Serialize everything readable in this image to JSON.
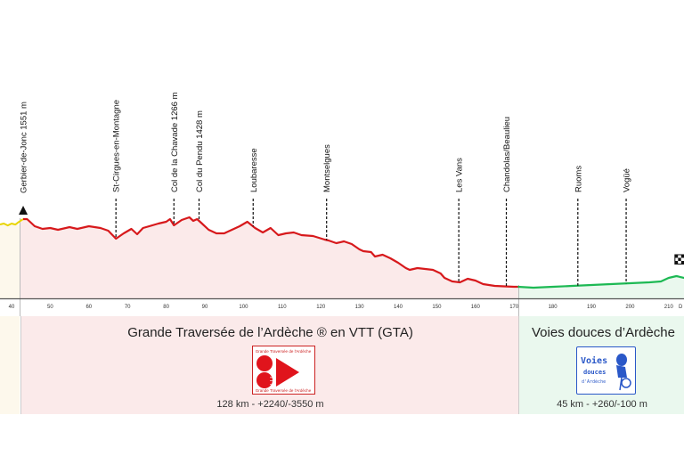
{
  "chart_data": {
    "type": "line",
    "xlabel": "",
    "ylabel": "",
    "x_ticks": [
      40,
      50,
      60,
      70,
      80,
      90,
      100,
      110,
      120,
      130,
      140,
      150,
      160,
      170,
      180,
      190,
      200,
      210
    ],
    "x_tick_cut_label": "D",
    "grid": false,
    "colors": {
      "approach": "#e8d400",
      "gta": "#d7191c",
      "voies": "#1db954",
      "gta_fill": "#fbeaea",
      "voies_fill": "#eaf8ee",
      "approach_fill": "#fdf8ec"
    },
    "series": [
      {
        "key": "approach",
        "x": [
          37,
          38,
          39,
          40,
          41,
          42,
          43
        ],
        "y": [
          1421,
          1440,
          1400,
          1440,
          1420,
          1480,
          1532
        ]
      },
      {
        "key": "gta",
        "x": [
          43,
          44,
          46,
          48,
          50,
          52,
          55,
          57,
          60,
          63,
          65,
          67,
          69,
          71,
          72.5,
          74,
          78,
          80,
          81,
          82,
          84,
          86,
          87,
          88,
          89,
          91,
          93,
          95,
          97,
          99,
          101,
          103,
          105,
          107,
          109,
          111,
          113,
          115,
          118,
          121,
          122,
          124,
          126,
          128,
          130,
          131,
          133,
          134,
          136,
          138,
          140,
          142,
          143,
          145,
          147,
          149,
          151,
          152,
          154,
          156,
          158,
          160,
          162,
          165,
          170,
          171
        ],
        "y": [
          1532,
          1532,
          1384,
          1329,
          1347,
          1310,
          1366,
          1329,
          1384,
          1347,
          1292,
          1125,
          1236,
          1329,
          1217,
          1347,
          1440,
          1477,
          1532,
          1403,
          1514,
          1569,
          1495,
          1532,
          1458,
          1310,
          1236,
          1236,
          1310,
          1384,
          1477,
          1347,
          1254,
          1347,
          1199,
          1236,
          1254,
          1199,
          1180,
          1106,
          1088,
          1032,
          1069,
          1014,
          903,
          866,
          847,
          754,
          791,
          717,
          625,
          514,
          477,
          514,
          495,
          477,
          403,
          310,
          236,
          217,
          291,
          254,
          180,
          143,
          125,
          125
        ]
      },
      {
        "key": "voies",
        "x": [
          171,
          175,
          180,
          185,
          190,
          195,
          200,
          205,
          208,
          210,
          212,
          214
        ],
        "y": [
          125,
          106,
          125,
          143,
          162,
          180,
          199,
          217,
          236,
          310,
          347,
          310
        ]
      }
    ],
    "waypoints": [
      {
        "km": 43,
        "label": "Gerbier-de-Jonc 1551 m",
        "start": true
      },
      {
        "km": 67,
        "label": "St-Cirgues-en-Montagne"
      },
      {
        "km": 82,
        "label": "Col de la Chavade 1266 m"
      },
      {
        "km": 88.5,
        "label": "Col du Pendu 1428 m"
      },
      {
        "km": 102.5,
        "label": "Loubaresse"
      },
      {
        "km": 121.5,
        "label": "Montselgues"
      },
      {
        "km": 155.7,
        "label": "Les Vans"
      },
      {
        "km": 168,
        "label": "Chandolas/Beaulieu"
      },
      {
        "km": 186.5,
        "label": "Ruoms"
      },
      {
        "km": 199,
        "label": "Vogüé"
      }
    ],
    "finish_km": 213
  },
  "sections": {
    "gta": {
      "title": "Grande Traversée de l’Ardèche ® en VTT (GTA)",
      "stats": "128 km - +2240/-3550 m",
      "logo_top": "Grande Traversée de l'Ardèche",
      "logo_side": "VTT FFC",
      "logo_bottom": "Grande Traversée de l'Ardèche"
    },
    "voies": {
      "title": "Voies douces d’Ardèche",
      "stats": "45 km - +260/-100 m",
      "logo_line1": "Voies",
      "logo_line2": "douces",
      "logo_line3": "d'Ardèche"
    }
  }
}
